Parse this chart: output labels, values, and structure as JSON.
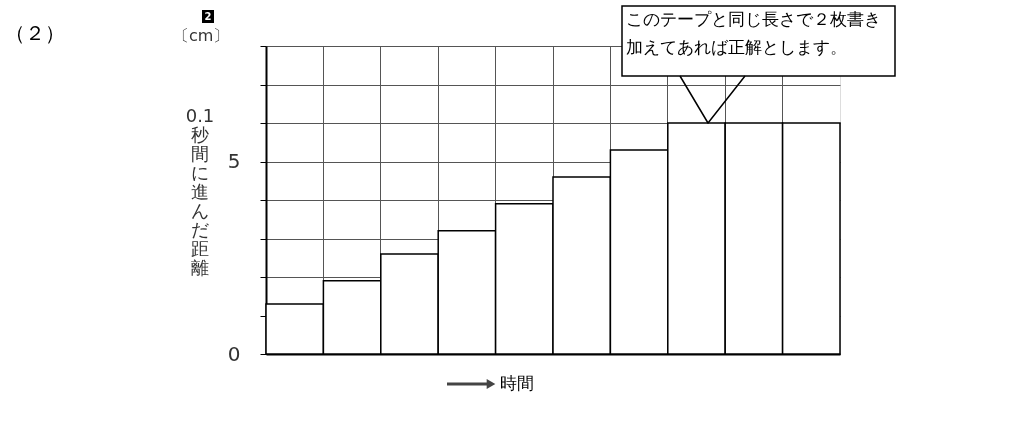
{
  "chart_data": {
    "type": "bar",
    "categories": [
      null,
      null,
      null,
      null,
      null,
      null,
      null,
      null,
      null,
      null
    ],
    "values": [
      1.3,
      1.9,
      2.6,
      3.2,
      3.9,
      4.6,
      5.3,
      6.0,
      6.0,
      6.0
    ],
    "color": "#ffffff",
    "ylabel": "0.1秒間に進んだ距離",
    "xlabel": "時間",
    "ylim": [
      0,
      8
    ],
    "yticks": [
      0,
      {
        "value": 1,
        "label": null
      },
      {
        "value": 2,
        "label": null
      },
      {
        "value": 3,
        "label": null
      },
      {
        "value": 4,
        "label": null
      },
      5,
      {
        "value": 6,
        "label": null
      },
      {
        "value": 7,
        "label": null
      },
      {
        "value": 8,
        "label": null
      }
    ],
    "tick_labels": "y",
    "grid": true,
    "annotations": [
      "（２）",
      "2",
      "〔cm〕",
      "このテープと同じ長さで２枚書き加えてあれば正解とします。"
    ]
  }
}
